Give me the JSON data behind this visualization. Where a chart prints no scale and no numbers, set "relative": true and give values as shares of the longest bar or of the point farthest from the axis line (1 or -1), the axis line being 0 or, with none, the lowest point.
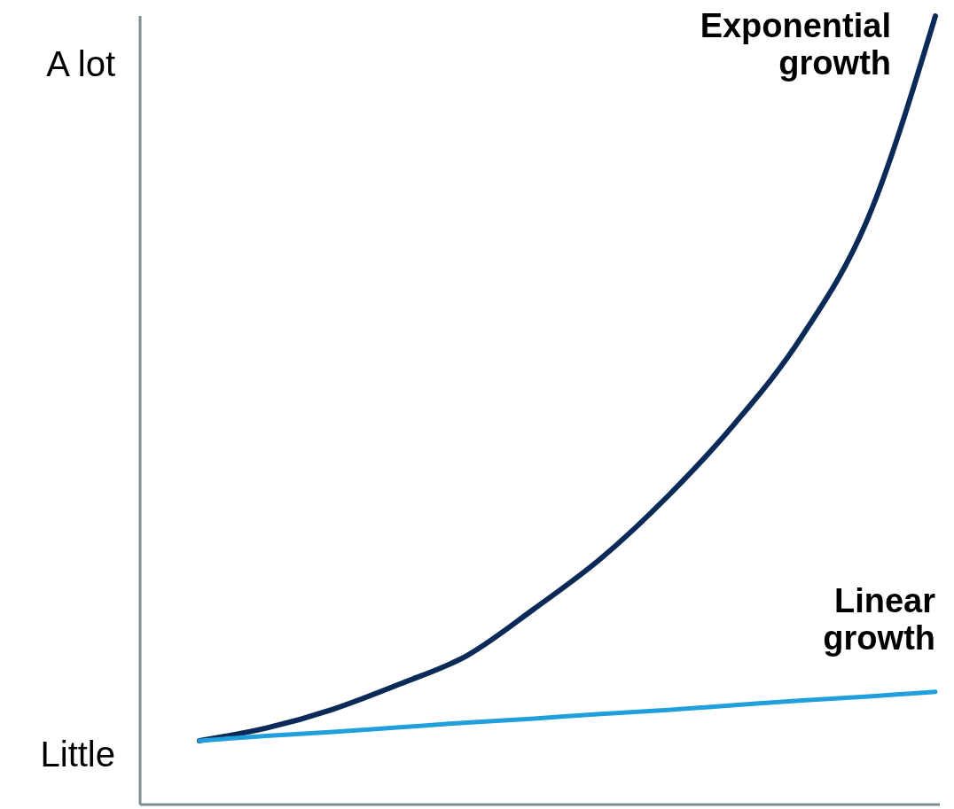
{
  "chart_data": {
    "type": "line",
    "relative": true,
    "categories": [
      null,
      null,
      null,
      null,
      null,
      null,
      null,
      null,
      null,
      null,
      null,
      null
    ],
    "series": [
      {
        "name": "Exponential growth",
        "color": "#0b2a57",
        "values": [
          0.081,
          0.097,
          0.121,
          0.153,
          0.189,
          0.248,
          0.312,
          0.391,
          0.483,
          0.593,
          0.745,
          1
        ]
      },
      {
        "name": "Linear growth",
        "color": "#1fa0dc",
        "values": [
          0.081,
          0.087,
          0.092,
          0.098,
          0.104,
          0.109,
          0.115,
          0.12,
          0.126,
          0.132,
          0.137,
          0.143
        ]
      }
    ],
    "annotations": [
      "A lot",
      "Little"
    ],
    "marker": "none",
    "line_style": "solid"
  }
}
